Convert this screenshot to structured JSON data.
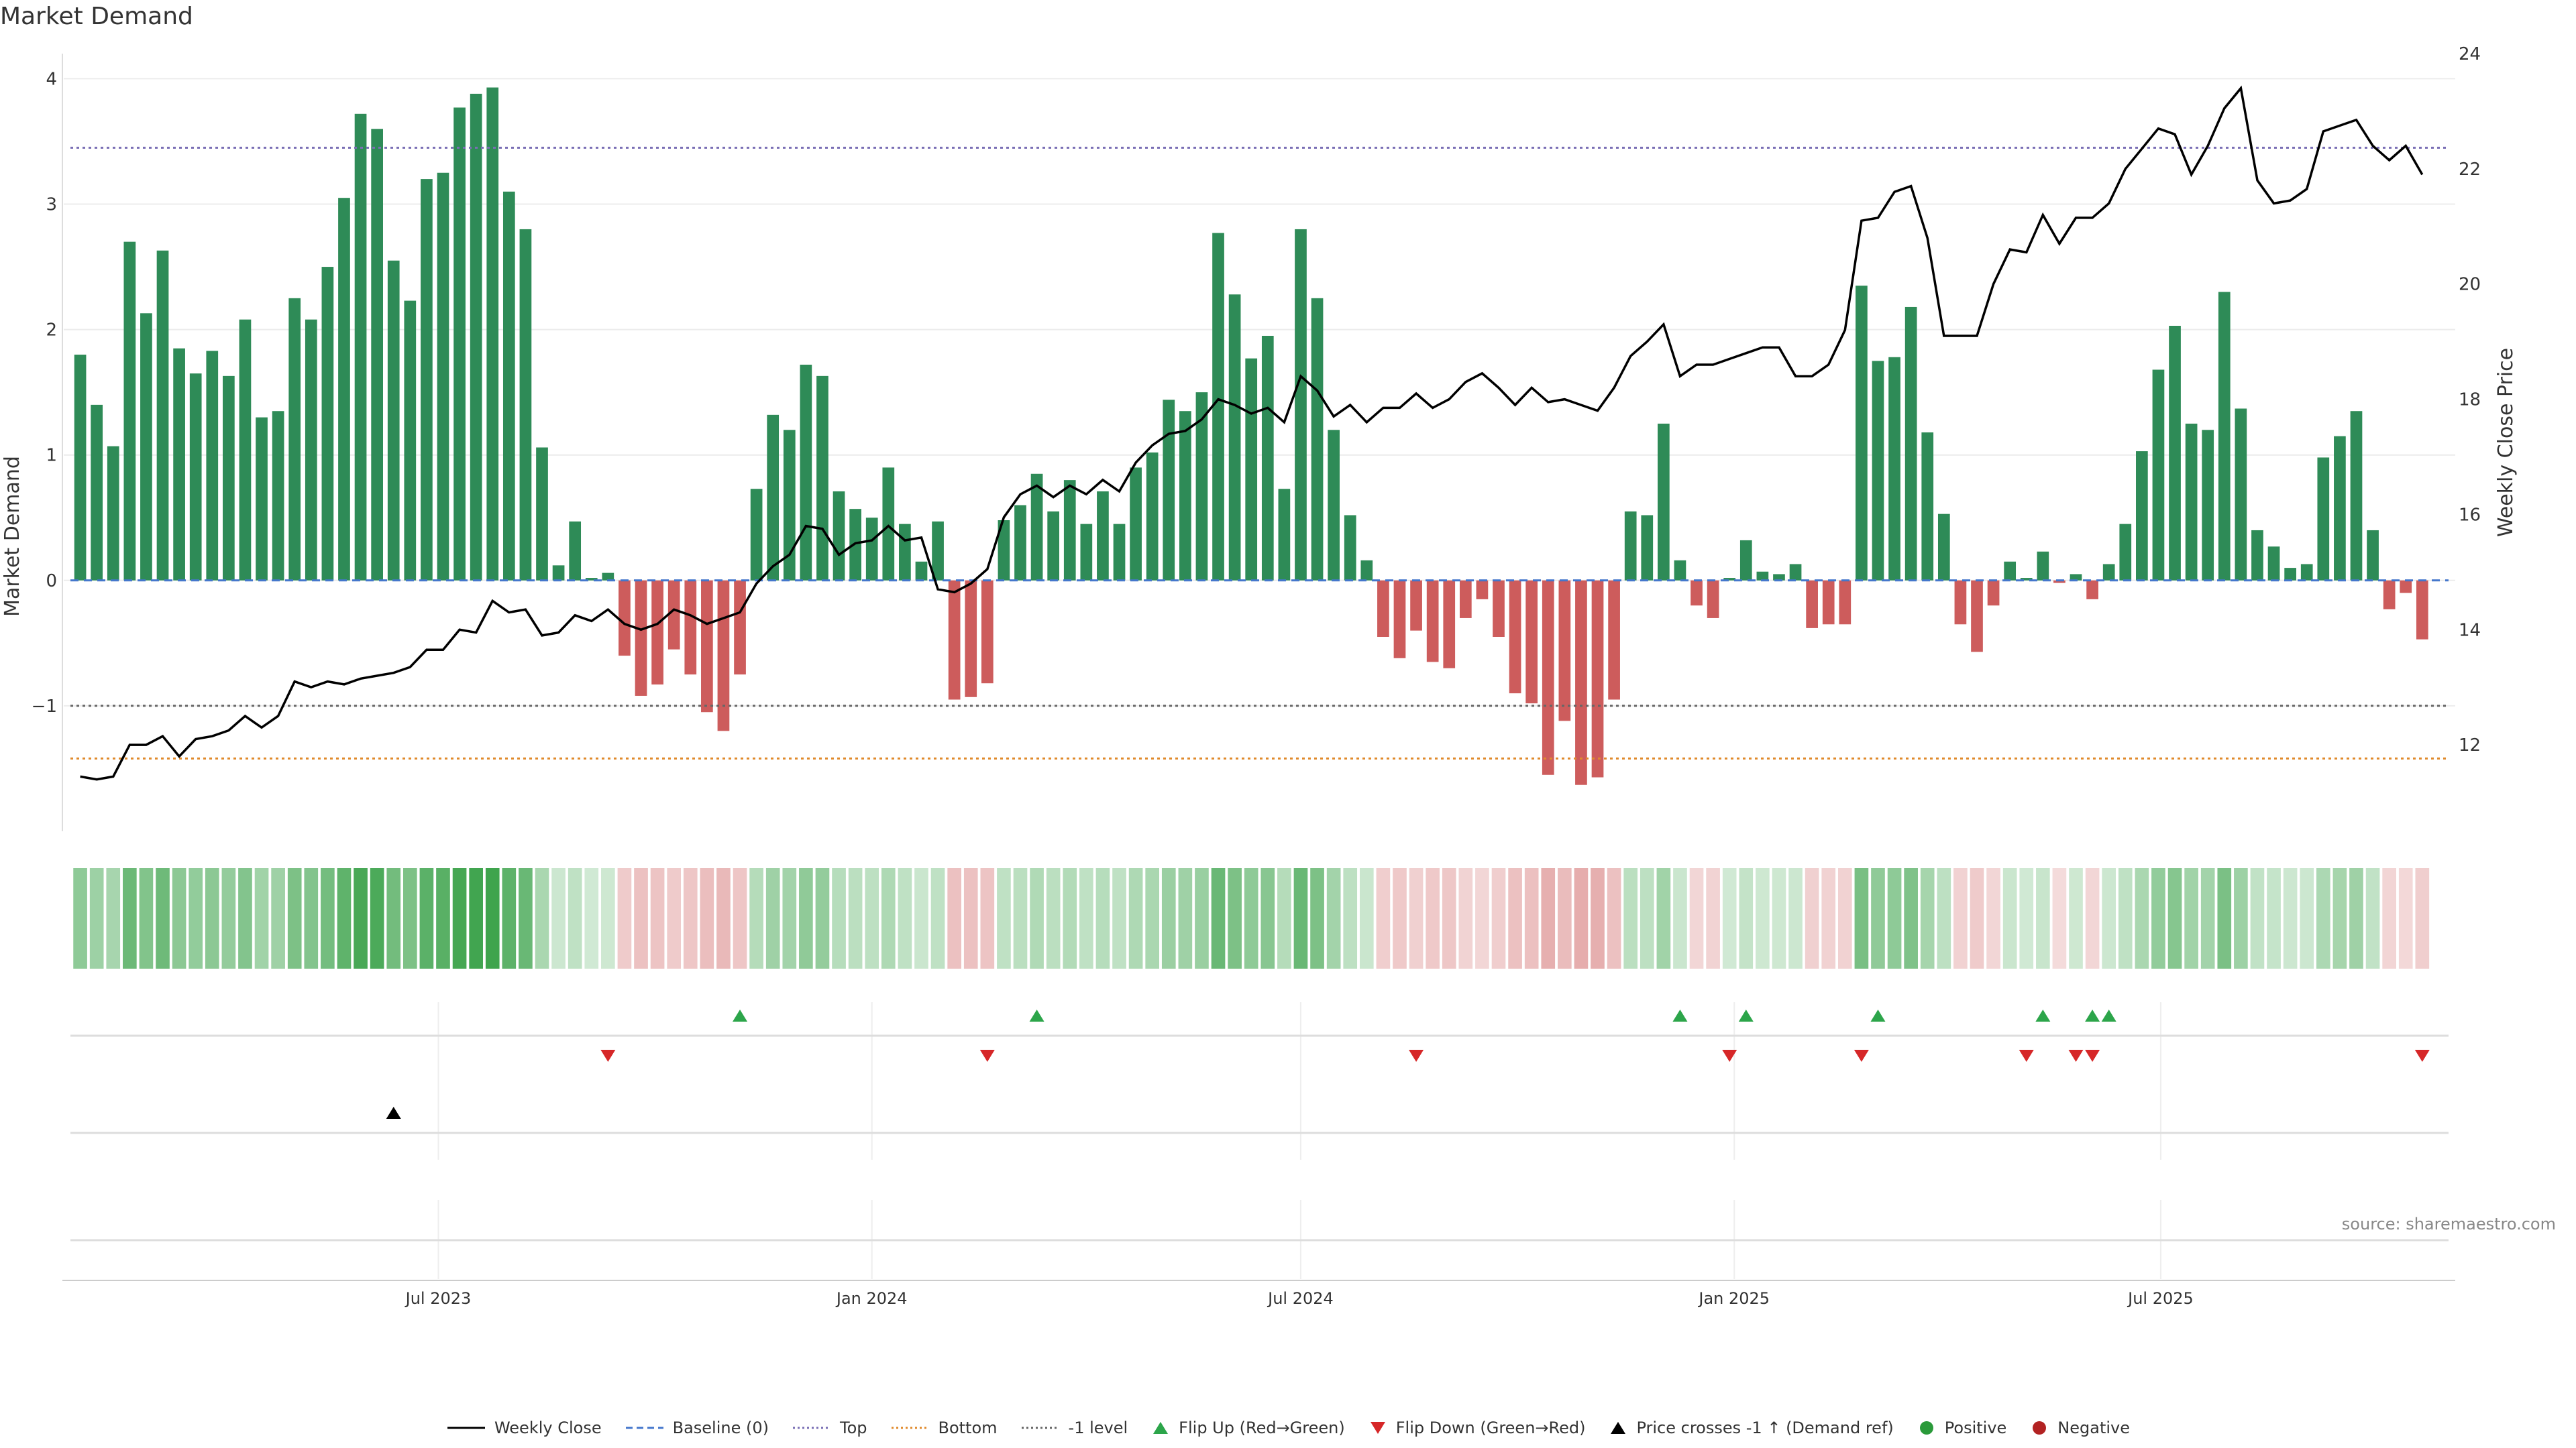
{
  "title": "Market Demand",
  "source": "source: sharemaestro.com",
  "legend": [
    {
      "label": "Weekly Close",
      "kind": "line",
      "color": "#000000",
      "dash": "none"
    },
    {
      "label": "Baseline (0)",
      "kind": "line",
      "color": "#4477cc",
      "dash": "dashed"
    },
    {
      "label": "Top",
      "kind": "line",
      "color": "#7a6fb5",
      "dash": "dotted"
    },
    {
      "label": "Bottom",
      "kind": "line",
      "color": "#e08a2c",
      "dash": "dotted"
    },
    {
      "label": "-1 level",
      "kind": "line",
      "color": "#666666",
      "dash": "dotted"
    },
    {
      "label": "Flip Up (Red→Green)",
      "kind": "tri-up",
      "color": "#2ca54a"
    },
    {
      "label": "Flip Down (Green→Red)",
      "kind": "tri-down",
      "color": "#d62728"
    },
    {
      "label": "Price crosses -1 ↑ (Demand ref)",
      "kind": "tri-up",
      "color": "#000000"
    },
    {
      "label": "Positive",
      "kind": "dot",
      "color": "#2a9a3a"
    },
    {
      "label": "Negative",
      "kind": "dot",
      "color": "#b22222"
    }
  ],
  "chart_data": {
    "type": "bar",
    "xlabel": "",
    "ylabel": "Market Demand",
    "y2label": "Weekly Close Price",
    "ylim": [
      -2,
      4.2
    ],
    "y2lim": [
      10.5,
      24
    ],
    "yticks": [
      -1,
      0,
      1,
      2,
      3,
      4
    ],
    "ytick_labels": [
      "−1",
      "0",
      "1",
      "2",
      "3",
      "4"
    ],
    "y2ticks": [
      12,
      14,
      16,
      18,
      20,
      22,
      24
    ],
    "x_range": [
      "2023-01-23",
      "2025-11-03"
    ],
    "x_ticks": [
      {
        "date": "2023-07-01",
        "label": "Jul 2023"
      },
      {
        "date": "2024-01-01",
        "label": "Jan 2024"
      },
      {
        "date": "2024-07-01",
        "label": "Jul 2024"
      },
      {
        "date": "2025-01-01",
        "label": "Jan 2025"
      },
      {
        "date": "2025-07-01",
        "label": "Jul 2025"
      }
    ],
    "bar_colors": {
      "positive": "#2e8b57",
      "negative": "#cd5c5c"
    },
    "ref_lines": {
      "top": 3.45,
      "bottom": -1.42,
      "minus_one": -1,
      "baseline": 0
    },
    "start_week": "2023-01-30",
    "demand": [
      1.8,
      1.4,
      1.07,
      2.7,
      2.13,
      2.63,
      1.85,
      1.65,
      1.83,
      1.63,
      2.08,
      1.3,
      1.35,
      2.25,
      2.08,
      2.5,
      3.05,
      3.72,
      3.6,
      2.55,
      2.23,
      3.2,
      3.25,
      3.77,
      3.88,
      3.93,
      3.1,
      2.8,
      1.06,
      0.12,
      0.47,
      0.02,
      0.06,
      -0.6,
      -0.92,
      -0.83,
      -0.55,
      -0.75,
      -1.05,
      -1.2,
      -0.75,
      0.73,
      1.32,
      1.2,
      1.72,
      1.63,
      0.71,
      0.57,
      0.5,
      0.9,
      0.45,
      0.15,
      0.47,
      -0.95,
      -0.93,
      -0.82,
      0.48,
      0.6,
      0.85,
      0.55,
      0.8,
      0.45,
      0.71,
      0.45,
      0.9,
      1.02,
      1.44,
      1.35,
      1.5,
      2.77,
      2.28,
      1.77,
      1.95,
      0.73,
      2.8,
      2.25,
      1.2,
      0.52,
      0.16,
      -0.45,
      -0.62,
      -0.4,
      -0.65,
      -0.7,
      -0.3,
      -0.15,
      -0.45,
      -0.9,
      -0.98,
      -1.55,
      -1.12,
      -1.63,
      -1.57,
      -0.95,
      0.55,
      0.52,
      1.25,
      0.16,
      -0.2,
      -0.3,
      0.02,
      0.32,
      0.07,
      0.05,
      0.13,
      -0.38,
      -0.35,
      -0.35,
      2.35,
      1.75,
      1.78,
      2.18,
      1.18,
      0.53,
      -0.35,
      -0.57,
      -0.2,
      0.15,
      0.02,
      0.23,
      -0.02,
      0.05,
      -0.15,
      0.13,
      0.45,
      1.03,
      1.68,
      2.03,
      1.25,
      1.2,
      2.3,
      1.37,
      0.4,
      0.27,
      0.1,
      0.13,
      0.98,
      1.15,
      1.35,
      0.4,
      -0.23,
      -0.1,
      -0.47
    ],
    "close": [
      11.45,
      11.4,
      11.45,
      12,
      12,
      12.15,
      11.8,
      12.1,
      12.15,
      12.25,
      12.5,
      12.3,
      12.5,
      13.1,
      13,
      13.1,
      13.05,
      13.15,
      13.2,
      13.25,
      13.35,
      13.65,
      13.65,
      14,
      13.95,
      14.5,
      14.3,
      14.35,
      13.9,
      13.95,
      14.25,
      14.15,
      14.35,
      14.1,
      14,
      14.1,
      14.35,
      14.25,
      14.1,
      14.2,
      14.3,
      14.8,
      15.1,
      15.3,
      15.8,
      15.75,
      15.3,
      15.5,
      15.55,
      15.8,
      15.55,
      15.6,
      14.7,
      14.65,
      14.8,
      15.05,
      15.95,
      16.35,
      16.5,
      16.3,
      16.5,
      16.35,
      16.6,
      16.4,
      16.9,
      17.2,
      17.4,
      17.45,
      17.65,
      18,
      17.9,
      17.75,
      17.85,
      17.6,
      18.4,
      18.15,
      17.7,
      17.9,
      17.6,
      17.85,
      17.85,
      18.1,
      17.85,
      18,
      18.3,
      18.45,
      18.2,
      17.9,
      18.2,
      17.95,
      18,
      17.9,
      17.8,
      18.2,
      18.75,
      19,
      19.3,
      18.4,
      18.6,
      18.6,
      18.7,
      18.8,
      18.9,
      18.9,
      18.4,
      18.4,
      18.6,
      19.2,
      21.1,
      21.15,
      21.6,
      21.7,
      20.8,
      19.1,
      19.1,
      19.1,
      20,
      20.6,
      20.55,
      21.2,
      20.7,
      21.15,
      21.15,
      21.4,
      22,
      22.35,
      22.7,
      22.6,
      21.9,
      22.4,
      23.05,
      23.4,
      21.8,
      21.4,
      21.45,
      21.65,
      22.65,
      22.75,
      22.85,
      22.4,
      22.15,
      22.4,
      21.9
    ],
    "flip_up": [
      "2023-11-06",
      "2024-03-11",
      "2024-12-09",
      "2025-01-06",
      "2025-03-03",
      "2025-05-12",
      "2025-06-02",
      "2025-06-09"
    ],
    "flip_down": [
      "2023-09-11",
      "2024-02-19",
      "2024-08-19",
      "2024-12-30",
      "2025-02-24",
      "2025-05-05",
      "2025-05-26",
      "2025-06-02",
      "2025-10-20"
    ],
    "price_cross": [
      "2023-06-12"
    ]
  }
}
